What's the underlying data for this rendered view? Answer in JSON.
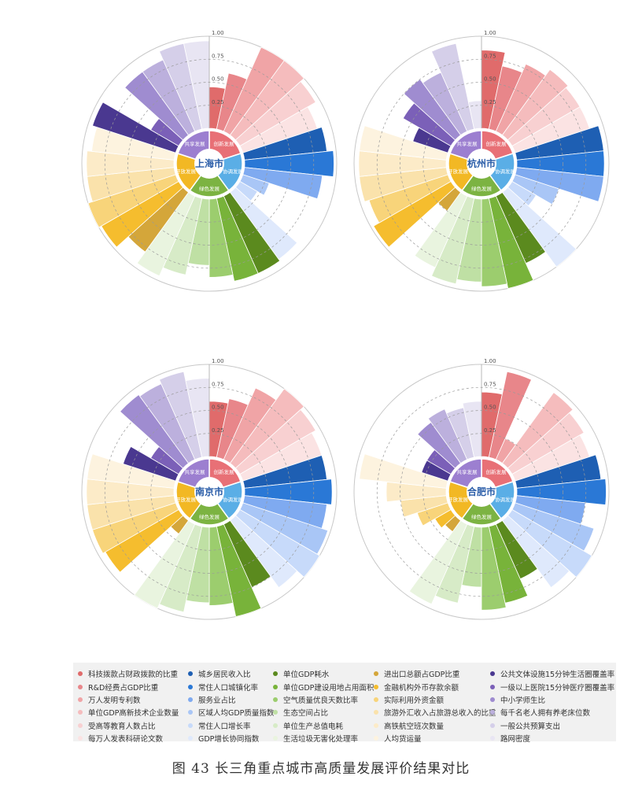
{
  "figure_caption": "图 43 长三角重点城市高质量发展评价结果对比",
  "radial_ticks": [
    "0.25",
    "0.50",
    "0.75",
    "1.00"
  ],
  "dimensions": [
    {
      "label": "创新发展",
      "color": "#e87076"
    },
    {
      "label": "协调发展",
      "color": "#5aaee6"
    },
    {
      "label": "绿色发展",
      "color": "#7cb342"
    },
    {
      "label": "开放发展",
      "color": "#f2b824"
    },
    {
      "label": "共享发展",
      "color": "#9c7fd0"
    }
  ],
  "legend": {
    "columns": [
      [
        {
          "label": "科技拨款占财政拨款的比重",
          "color": "#e06b6b"
        },
        {
          "label": "R&D经费占GDP比重",
          "color": "#e8868a"
        },
        {
          "label": "万人发明专利数",
          "color": "#f0a4a6"
        },
        {
          "label": "单位GDP高新技术企业数量",
          "color": "#f5bcbd"
        },
        {
          "label": "受高等教育人数占比",
          "color": "#f8d0d1"
        },
        {
          "label": "每万人发表科研论文数",
          "color": "#fbe3e3"
        }
      ],
      [
        {
          "label": "城乡居民收入比",
          "color": "#1e5fb3"
        },
        {
          "label": "常住人口城镇化率",
          "color": "#2a78d6"
        },
        {
          "label": "服务业占比",
          "color": "#7faaf0"
        },
        {
          "label": "区域人均GDP质量指数",
          "color": "#a9c6f6"
        },
        {
          "label": "常住人口增长率",
          "color": "#c7dafa"
        },
        {
          "label": "GDP增长协同指数",
          "color": "#dfe9fc"
        }
      ],
      [
        {
          "label": "单位GDP耗水",
          "color": "#5b8a1e"
        },
        {
          "label": "单位GDP建设用地占用面积",
          "color": "#78b33a"
        },
        {
          "label": "空气质量优良天数比率",
          "color": "#9ccd6e"
        },
        {
          "label": "生态空间占比",
          "color": "#bfe0a4"
        },
        {
          "label": "单位生产总值电耗",
          "color": "#d7ebc7"
        },
        {
          "label": "生活垃圾无害化处理率",
          "color": "#e9f4df"
        }
      ],
      [
        {
          "label": "进出口总额占GDP比重",
          "color": "#d4a63a"
        },
        {
          "label": "金融机构外币存款余额",
          "color": "#f5bd2e"
        },
        {
          "label": "实际利用外资金额",
          "color": "#f8d47a"
        },
        {
          "label": "旅游外汇收入占旅游总收入的比重",
          "color": "#fae2ab"
        },
        {
          "label": "高铁航空班次数量",
          "color": "#fcebc8"
        },
        {
          "label": "人均货运量",
          "color": "#fdf3df"
        }
      ],
      [
        {
          "label": "公共文体设施15分钟生活圈覆盖率",
          "color": "#4a3890"
        },
        {
          "label": "一级以上医院15分钟医疗圈覆盖率",
          "color": "#7b60b8"
        },
        {
          "label": "中小学师生比",
          "color": "#9f8cd0"
        },
        {
          "label": "每千名老人拥有养老床位数",
          "color": "#bcb0dd"
        },
        {
          "label": "一般公共预算支出",
          "color": "#d5cfe9"
        },
        {
          "label": "路网密度",
          "color": "#e8e5f3"
        }
      ]
    ]
  },
  "chart_data": [
    {
      "type": "polar-bar",
      "title": "上海市",
      "rlim": [
        0,
        1
      ],
      "series": [
        {
          "dimension": "创新发展",
          "values": [
            0.45,
            0.62,
            1.0,
            1.0,
            0.95,
            0.85
          ]
        },
        {
          "dimension": "协调发展",
          "values": [
            0.9,
            0.97,
            0.85,
            0.3,
            0.22,
            0.9
          ]
        },
        {
          "dimension": "绿色发展",
          "values": [
            0.92,
            0.92,
            0.85,
            0.72,
            0.85,
            0.95
          ]
        },
        {
          "dimension": "开放发展",
          "values": [
            0.8,
            0.97,
            1.0,
            0.95,
            0.95,
            0.9
          ]
        },
        {
          "dimension": "共享发展",
          "values": [
            0.95,
            0.35,
            0.85,
            0.85,
            0.95,
            0.95
          ]
        }
      ]
    },
    {
      "type": "polar-bar",
      "title": "杭州市",
      "rlim": [
        0,
        1
      ],
      "series": [
        {
          "dimension": "创新发展",
          "values": [
            0.85,
            0.7,
            0.8,
            0.88,
            0.85,
            0.85
          ]
        },
        {
          "dimension": "协调发展",
          "values": [
            0.95,
            0.95,
            0.95,
            0.5,
            0.3,
            1.0
          ]
        },
        {
          "dimension": "绿色发展",
          "values": [
            0.8,
            1.0,
            0.95,
            0.9,
            0.95,
            0.85
          ]
        },
        {
          "dimension": "开放发展",
          "values": [
            0.25,
            0.97,
            0.9,
            0.95,
            0.95,
            0.95
          ]
        },
        {
          "dimension": "共享发展",
          "values": [
            0.4,
            0.6,
            0.75,
            0.7,
            0.95,
            0.3
          ]
        }
      ]
    },
    {
      "type": "polar-bar",
      "title": "南京市",
      "rlim": [
        0,
        1
      ],
      "series": [
        {
          "dimension": "创新发展",
          "values": [
            0.6,
            0.65,
            0.85,
            1.0,
            0.95,
            0.9
          ]
        },
        {
          "dimension": "协调发展",
          "values": [
            0.9,
            0.95,
            0.9,
            0.97,
            1.0,
            0.9
          ]
        },
        {
          "dimension": "绿色发展",
          "values": [
            0.75,
            1.0,
            0.85,
            0.82,
            0.95,
            1.0
          ]
        },
        {
          "dimension": "开放发展",
          "values": [
            0.18,
            0.92,
            0.95,
            0.95,
            0.95,
            0.95
          ]
        },
        {
          "dimension": "共享发展",
          "values": [
            0.6,
            0.35,
            0.92,
            0.9,
            0.95,
            0.85
          ]
        }
      ]
    },
    {
      "type": "polar-bar",
      "title": "合肥市",
      "rlim": [
        0,
        1
      ],
      "series": [
        {
          "dimension": "创新发展",
          "values": [
            0.7,
            0.95,
            0.25,
            0.95,
            0.9,
            0.85
          ]
        },
        {
          "dimension": "协调发展",
          "values": [
            0.92,
            0.97,
            0.75,
            0.9,
            1.0,
            0.9
          ]
        },
        {
          "dimension": "绿色发展",
          "values": [
            0.65,
            0.85,
            0.9,
            0.65,
            0.85,
            0.95
          ]
        },
        {
          "dimension": "开放发展",
          "values": [
            0.15,
            0.2,
            0.35,
            0.5,
            0.65,
            0.95
          ]
        },
        {
          "dimension": "共享发展",
          "values": [
            0.3,
            0.3,
            0.55,
            0.6,
            0.55,
            0.6
          ]
        }
      ]
    }
  ]
}
